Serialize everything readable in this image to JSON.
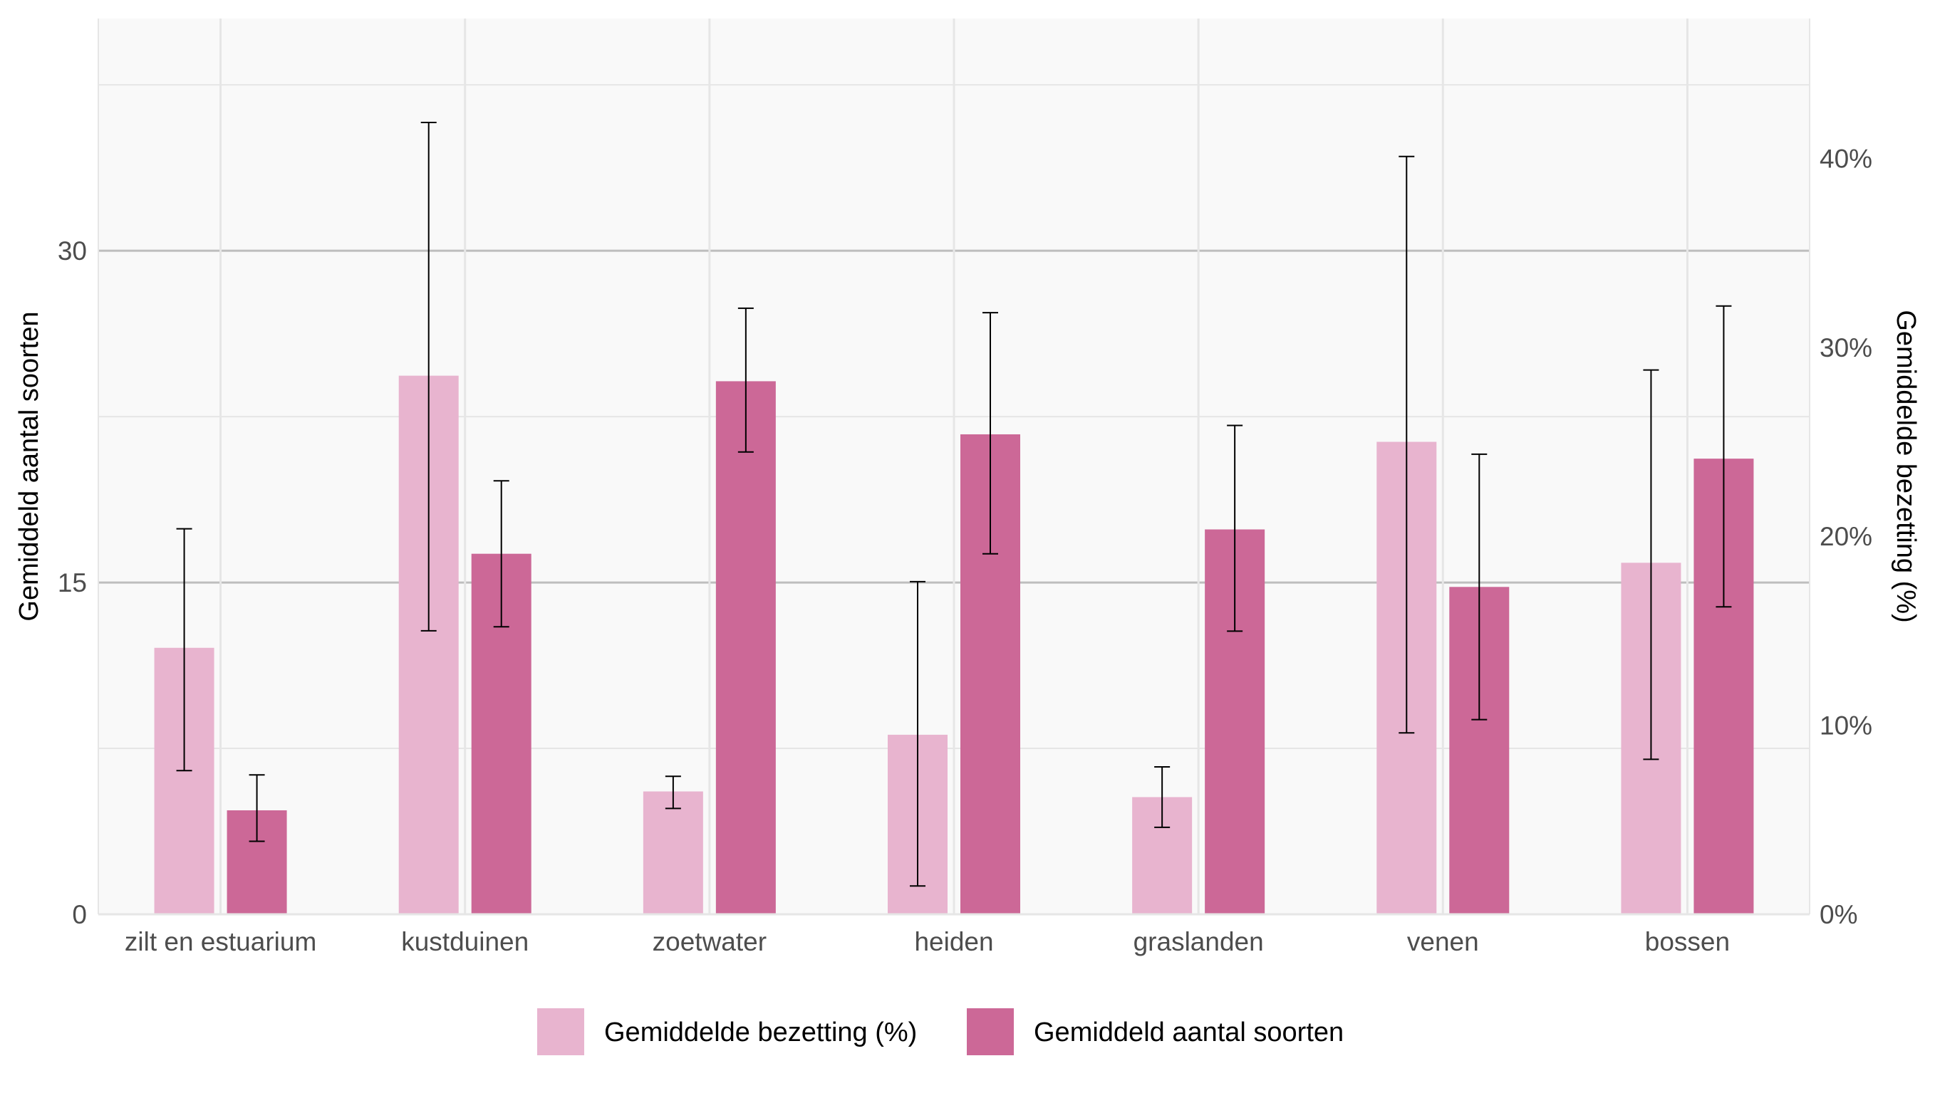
{
  "chart_data": {
    "type": "bar",
    "categories": [
      "zilt en estuarium",
      "kustduinen",
      "zoetwater",
      "heiden",
      "graslanden",
      "venen",
      "bossen"
    ],
    "series": [
      {
        "name": "Gemiddelde bezetting (%)",
        "axis": "right",
        "color": "#e8b4cf",
        "values": [
          14.1,
          28.5,
          6.5,
          9.5,
          6.2,
          25.0,
          18.6
        ],
        "err_low": [
          7.6,
          15.0,
          5.6,
          1.5,
          4.6,
          9.6,
          8.2
        ],
        "err_high": [
          20.4,
          41.9,
          7.3,
          17.6,
          7.8,
          40.1,
          28.8
        ]
      },
      {
        "name": "Gemiddeld aantal soorten",
        "axis": "left",
        "color": "#cc6897",
        "values": [
          4.7,
          16.3,
          24.1,
          21.7,
          17.4,
          14.8,
          20.6
        ],
        "err_low": [
          3.3,
          13.0,
          20.9,
          16.3,
          12.8,
          8.8,
          13.9
        ],
        "err_high": [
          6.3,
          19.6,
          27.4,
          27.2,
          22.1,
          20.8,
          27.5
        ]
      }
    ],
    "y_left": {
      "label": "Gemiddeld aantal soorten",
      "ticks": [
        0,
        15,
        30
      ],
      "tick_labels": [
        "0",
        "15",
        "30"
      ],
      "range": [
        0,
        40.5
      ]
    },
    "y_right": {
      "label": "Gemiddelde bezetting (%)",
      "ticks": [
        0,
        10,
        20,
        30,
        40
      ],
      "tick_labels": [
        "0%",
        "10%",
        "20%",
        "30%",
        "40%"
      ],
      "range": [
        0,
        47.4
      ]
    },
    "grid": true,
    "legend_position": "bottom",
    "colors": {
      "panel_bg": "#f9f9f9",
      "grid_major": "#bebebe",
      "grid_minor": "#e6e6e6",
      "error_bar": "#000000"
    }
  }
}
